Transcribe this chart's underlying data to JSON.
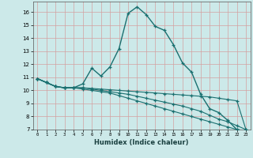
{
  "xlabel": "Humidex (Indice chaleur)",
  "bg_color": "#cce9e9",
  "grid_color": "#d4a0a0",
  "line_color": "#1a7070",
  "xlim": [
    -0.5,
    23.5
  ],
  "ylim": [
    7,
    16.8
  ],
  "yticks": [
    7,
    8,
    9,
    10,
    11,
    12,
    13,
    14,
    15,
    16
  ],
  "xticks": [
    0,
    1,
    2,
    3,
    4,
    5,
    6,
    7,
    8,
    9,
    10,
    11,
    12,
    13,
    14,
    15,
    16,
    17,
    18,
    19,
    20,
    21,
    22,
    23
  ],
  "line1_x": [
    0,
    1,
    2,
    3,
    4,
    5,
    6,
    7,
    8,
    9,
    10,
    11,
    12,
    13,
    14,
    15,
    16,
    17,
    18,
    19,
    20,
    21,
    22,
    23
  ],
  "line1_y": [
    10.9,
    10.6,
    10.3,
    10.2,
    10.2,
    10.5,
    11.7,
    11.1,
    11.8,
    13.2,
    15.9,
    16.4,
    15.8,
    14.9,
    14.6,
    13.5,
    12.1,
    11.4,
    9.7,
    8.6,
    8.3,
    7.7,
    7.0,
    6.9
  ],
  "line2_x": [
    0,
    1,
    2,
    3,
    4,
    5,
    6,
    7,
    8,
    9,
    10,
    11,
    12,
    13,
    14,
    15,
    16,
    17,
    18,
    19,
    20,
    21,
    22,
    23
  ],
  "line2_y": [
    10.9,
    10.6,
    10.3,
    10.2,
    10.2,
    10.2,
    10.15,
    10.1,
    10.05,
    10.0,
    9.95,
    9.9,
    9.85,
    9.8,
    9.75,
    9.7,
    9.65,
    9.6,
    9.55,
    9.5,
    9.4,
    9.3,
    9.2,
    7.0
  ],
  "line3_x": [
    0,
    1,
    2,
    3,
    4,
    5,
    6,
    7,
    8,
    9,
    10,
    11,
    12,
    13,
    14,
    15,
    16,
    17,
    18,
    19,
    20,
    21,
    22,
    23
  ],
  "line3_y": [
    10.9,
    10.6,
    10.3,
    10.2,
    10.2,
    10.2,
    10.1,
    10.0,
    9.9,
    9.8,
    9.7,
    9.55,
    9.4,
    9.25,
    9.1,
    8.95,
    8.8,
    8.6,
    8.4,
    8.1,
    7.8,
    7.6,
    7.3,
    7.0
  ],
  "line4_x": [
    0,
    1,
    2,
    3,
    4,
    5,
    6,
    7,
    8,
    9,
    10,
    11,
    12,
    13,
    14,
    15,
    16,
    17,
    18,
    19,
    20,
    21,
    22,
    23
  ],
  "line4_y": [
    10.9,
    10.6,
    10.3,
    10.2,
    10.2,
    10.1,
    10.0,
    9.9,
    9.8,
    9.6,
    9.4,
    9.2,
    9.0,
    8.8,
    8.6,
    8.4,
    8.2,
    8.0,
    7.8,
    7.6,
    7.4,
    7.2,
    7.0,
    6.9
  ]
}
